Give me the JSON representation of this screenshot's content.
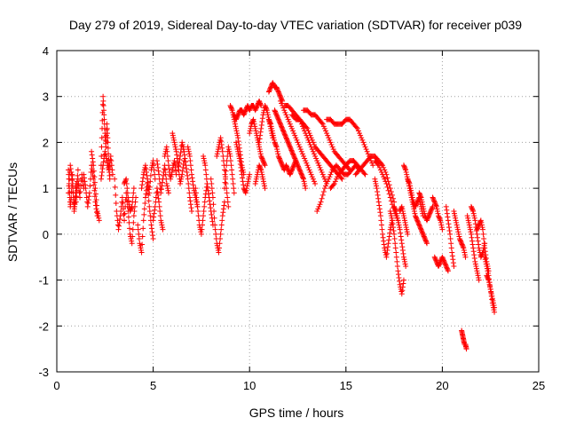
{
  "chart_data": {
    "type": "scatter",
    "title": "Day 279 of 2019, Sidereal Day-to-day VTEC variation (SDTVAR) for receiver p039",
    "xlabel": "GPS time / hours",
    "ylabel": "SDTVAR / TECUs",
    "xlim": [
      0,
      25
    ],
    "ylim": [
      -3,
      4
    ],
    "xticks": [
      0,
      5,
      10,
      15,
      20,
      25
    ],
    "yticks": [
      -3,
      -2,
      -1,
      0,
      1,
      2,
      3,
      4
    ],
    "grid": true,
    "marker": "+",
    "color": "#ff0000",
    "segments": [
      {
        "x": [
          0.6,
          0.65,
          0.7,
          0.75,
          0.8,
          0.85,
          0.9,
          0.95,
          1.0
        ],
        "y": [
          1.4,
          1.0,
          0.6,
          0.8,
          1.3,
          0.9,
          0.5,
          0.7,
          1.1
        ]
      },
      {
        "x": [
          0.6,
          0.7,
          0.8,
          0.9,
          1.0,
          1.1
        ],
        "y": [
          0.9,
          1.5,
          1.2,
          0.6,
          0.9,
          1.4
        ]
      },
      {
        "x": [
          1.0,
          1.1,
          1.2,
          1.3,
          1.4
        ],
        "y": [
          0.7,
          1.2,
          0.8,
          1.3,
          1.0
        ]
      },
      {
        "x": [
          1.4,
          1.5,
          1.6,
          1.7,
          1.8,
          1.9,
          2.0,
          2.1
        ],
        "y": [
          1.3,
          1.0,
          0.6,
          0.9,
          1.5,
          1.2,
          0.7,
          0.4
        ]
      },
      {
        "x": [
          1.8,
          1.9,
          2.0,
          2.1,
          2.2
        ],
        "y": [
          1.8,
          1.5,
          1.0,
          0.5,
          0.3
        ]
      },
      {
        "x": [
          2.3,
          2.35,
          2.4,
          2.45,
          2.5,
          2.55,
          2.6,
          2.65,
          2.7,
          2.75
        ],
        "y": [
          1.5,
          2.3,
          3.0,
          2.6,
          2.2,
          1.9,
          2.4,
          2.0,
          1.5,
          1.2
        ]
      },
      {
        "x": [
          2.3,
          2.4,
          2.5,
          2.6,
          2.7,
          2.8,
          2.9
        ],
        "y": [
          1.2,
          1.5,
          1.8,
          1.6,
          1.4,
          1.7,
          1.3
        ]
      },
      {
        "x": [
          3.0,
          3.1,
          3.2,
          3.3,
          3.4,
          3.5
        ],
        "y": [
          1.2,
          0.5,
          0.1,
          0.4,
          0.8,
          0.3
        ]
      },
      {
        "x": [
          3.5,
          3.6,
          3.7,
          3.8,
          3.9,
          4.0,
          4.1
        ],
        "y": [
          0.3,
          0.9,
          0.5,
          0.0,
          -0.2,
          0.4,
          0.8
        ]
      },
      {
        "x": [
          3.5,
          3.6,
          3.7,
          3.8,
          3.9,
          4.0
        ],
        "y": [
          1.1,
          1.2,
          0.8,
          0.5,
          0.6,
          1.0
        ]
      },
      {
        "x": [
          4.2,
          4.3,
          4.4,
          4.5,
          4.6,
          4.7,
          4.8,
          4.9,
          5.0
        ],
        "y": [
          0.2,
          -0.2,
          -0.4,
          0.3,
          0.8,
          1.1,
          0.6,
          0.2,
          -0.1
        ]
      },
      {
        "x": [
          4.4,
          4.5,
          4.6,
          4.7,
          4.8,
          4.9,
          5.0,
          5.1
        ],
        "y": [
          1.0,
          1.3,
          1.5,
          1.2,
          0.9,
          1.4,
          1.6,
          1.2
        ]
      },
      {
        "x": [
          5.0,
          5.1,
          5.2,
          5.3,
          5.4,
          5.5
        ],
        "y": [
          0.3,
          0.6,
          1.0,
          0.7,
          0.3,
          0.1
        ]
      },
      {
        "x": [
          5.2,
          5.3,
          5.4,
          5.5,
          5.6,
          5.7,
          5.8
        ],
        "y": [
          1.6,
          1.3,
          0.9,
          1.2,
          1.5,
          1.1,
          0.9
        ]
      },
      {
        "x": [
          5.6,
          5.7,
          5.8,
          5.9,
          6.0,
          6.1,
          6.2
        ],
        "y": [
          1.7,
          1.9,
          1.5,
          1.2,
          1.4,
          1.6,
          1.3
        ]
      },
      {
        "x": [
          6.0,
          6.1,
          6.2,
          6.3,
          6.4,
          6.5,
          6.6
        ],
        "y": [
          2.2,
          2.0,
          1.8,
          1.5,
          1.1,
          1.3,
          1.6
        ]
      },
      {
        "x": [
          6.3,
          6.4,
          6.5,
          6.6,
          6.7,
          6.8,
          6.9,
          7.0
        ],
        "y": [
          1.4,
          1.7,
          2.0,
          1.8,
          1.5,
          1.2,
          0.8,
          0.5
        ]
      },
      {
        "x": [
          6.8,
          6.9,
          7.0,
          7.1,
          7.2,
          7.3
        ],
        "y": [
          1.9,
          1.7,
          1.3,
          1.0,
          0.8,
          0.6
        ]
      },
      {
        "x": [
          7.2,
          7.3,
          7.4,
          7.5,
          7.6,
          7.7,
          7.8
        ],
        "y": [
          1.0,
          0.6,
          0.2,
          0.0,
          0.4,
          0.8,
          1.1
        ]
      },
      {
        "x": [
          7.6,
          7.7,
          7.8,
          7.9,
          8.0,
          8.1
        ],
        "y": [
          1.7,
          1.5,
          1.1,
          0.8,
          0.5,
          0.2
        ]
      },
      {
        "x": [
          8.0,
          8.1,
          8.2,
          8.3,
          8.4,
          8.5,
          8.6,
          8.7
        ],
        "y": [
          1.2,
          0.8,
          0.2,
          -0.2,
          -0.4,
          0.0,
          0.4,
          0.7
        ]
      },
      {
        "x": [
          8.3,
          8.4,
          8.5,
          8.6,
          8.7,
          8.8,
          8.9
        ],
        "y": [
          1.7,
          1.9,
          2.1,
          1.8,
          1.4,
          1.0,
          0.6
        ]
      },
      {
        "x": [
          8.7,
          8.8,
          8.9,
          9.0,
          9.1,
          9.2
        ],
        "y": [
          1.0,
          1.5,
          1.9,
          1.7,
          1.3,
          0.9
        ]
      },
      {
        "x": [
          9.0,
          9.1,
          9.2,
          9.3,
          9.4,
          9.5,
          9.6,
          9.7
        ],
        "y": [
          2.8,
          2.7,
          2.5,
          2.3,
          2.1,
          1.8,
          1.5,
          1.3
        ]
      },
      {
        "x": [
          9.2,
          9.3,
          9.4,
          9.5,
          9.6,
          9.7,
          9.8,
          9.9,
          10.0,
          10.1,
          10.2,
          10.3,
          10.4,
          10.5,
          10.6
        ],
        "y": [
          2.6,
          2.5,
          2.6,
          2.7,
          2.7,
          2.6,
          2.7,
          2.8,
          2.7,
          2.8,
          2.8,
          2.7,
          2.8,
          2.9,
          2.8
        ]
      },
      {
        "x": [
          9.3,
          9.4,
          9.5,
          9.6,
          9.7,
          9.8,
          9.9,
          10.0
        ],
        "y": [
          2.0,
          1.8,
          1.6,
          1.3,
          1.0,
          0.9,
          1.1,
          1.3
        ]
      },
      {
        "x": [
          10.0,
          10.1,
          10.2,
          10.3,
          10.4,
          10.5,
          10.6,
          10.7,
          10.8
        ],
        "y": [
          2.2,
          2.4,
          2.5,
          2.3,
          2.1,
          1.9,
          1.7,
          1.6,
          1.5
        ]
      },
      {
        "x": [
          10.5,
          10.6,
          10.7,
          10.8,
          10.9,
          11.0,
          11.1,
          11.2
        ],
        "y": [
          2.0,
          2.3,
          2.6,
          2.8,
          2.7,
          2.5,
          2.3,
          2.1
        ]
      },
      {
        "x": [
          10.3,
          10.4,
          10.5,
          10.6,
          10.7,
          10.8
        ],
        "y": [
          1.1,
          1.3,
          1.5,
          1.4,
          1.2,
          1.0
        ]
      },
      {
        "x": [
          11.0,
          11.1,
          11.2,
          11.3,
          11.4,
          11.5,
          11.6,
          11.7
        ],
        "y": [
          3.1,
          3.2,
          3.3,
          3.2,
          3.2,
          3.1,
          3.0,
          2.9
        ]
      },
      {
        "x": [
          11.0,
          11.1,
          11.2,
          11.3,
          11.4,
          11.5,
          11.6,
          11.7,
          11.8,
          11.9,
          12.0,
          12.1,
          12.2,
          12.3,
          12.4
        ],
        "y": [
          2.5,
          2.4,
          2.2,
          2.0,
          1.9,
          1.7,
          1.6,
          1.5,
          1.4,
          1.5,
          1.4,
          1.3,
          1.4,
          1.5,
          1.6
        ]
      },
      {
        "x": [
          11.3,
          11.4,
          11.5,
          11.6,
          11.7,
          11.8,
          11.9,
          12.0,
          12.1,
          12.2,
          12.3,
          12.4,
          12.5,
          12.6,
          12.7,
          12.8,
          12.9
        ],
        "y": [
          2.7,
          2.6,
          2.5,
          2.4,
          2.3,
          2.2,
          2.1,
          2.0,
          1.9,
          1.8,
          1.7,
          1.6,
          1.5,
          1.4,
          1.3,
          1.2,
          1.0
        ]
      },
      {
        "x": [
          11.6,
          11.8,
          12.0,
          12.2,
          12.4,
          12.6,
          12.8,
          13.0,
          13.2,
          13.4
        ],
        "y": [
          2.9,
          2.7,
          2.5,
          2.3,
          2.1,
          1.9,
          1.7,
          1.5,
          1.3,
          1.1
        ]
      },
      {
        "x": [
          11.8,
          12.0,
          12.2,
          12.4,
          12.6,
          12.8,
          13.0,
          13.2,
          13.4,
          13.6,
          13.8,
          14.0
        ],
        "y": [
          2.8,
          2.8,
          2.7,
          2.6,
          2.5,
          2.3,
          2.1,
          1.9,
          1.7,
          1.5,
          1.3,
          1.1
        ]
      },
      {
        "x": [
          12.2,
          12.4,
          12.6,
          12.8,
          13.0,
          13.2,
          13.4,
          13.6,
          13.8,
          14.0,
          14.2,
          14.4,
          14.6,
          14.8
        ],
        "y": [
          2.6,
          2.5,
          2.5,
          2.4,
          2.3,
          2.1,
          1.9,
          1.8,
          1.7,
          1.6,
          1.5,
          1.4,
          1.3,
          1.2
        ]
      },
      {
        "x": [
          12.8,
          13.0,
          13.2,
          13.4,
          13.6,
          13.8,
          14.0,
          14.2,
          14.4,
          14.6,
          14.8,
          15.0,
          15.2
        ],
        "y": [
          2.7,
          2.7,
          2.6,
          2.6,
          2.5,
          2.4,
          2.2,
          2.0,
          1.8,
          1.7,
          1.6,
          1.5,
          1.4
        ]
      },
      {
        "x": [
          13.5,
          13.7,
          13.9,
          14.1,
          14.3,
          14.5,
          14.7,
          14.9,
          15.1,
          15.3,
          15.5,
          15.7
        ],
        "y": [
          0.5,
          0.7,
          1.0,
          1.2,
          1.4,
          1.5,
          1.4,
          1.3,
          1.3,
          1.4,
          1.5,
          1.4
        ]
      },
      {
        "x": [
          14.2,
          14.4,
          14.6,
          14.8,
          15.0,
          15.2,
          15.4,
          15.6,
          15.8,
          16.0
        ],
        "y": [
          1.0,
          1.1,
          1.3,
          1.4,
          1.5,
          1.6,
          1.6,
          1.5,
          1.4,
          1.3
        ]
      },
      {
        "x": [
          14.0,
          14.2,
          14.4,
          14.6,
          14.8,
          15.0,
          15.2,
          15.4,
          15.6,
          15.8,
          16.0,
          16.2,
          16.4
        ],
        "y": [
          2.5,
          2.5,
          2.4,
          2.4,
          2.4,
          2.5,
          2.5,
          2.4,
          2.3,
          2.1,
          1.9,
          1.7,
          1.5
        ]
      },
      {
        "x": [
          15.5,
          15.7,
          15.9,
          16.1,
          16.3,
          16.5,
          16.7,
          16.9,
          17.1,
          17.3,
          17.5
        ],
        "y": [
          1.3,
          1.4,
          1.5,
          1.6,
          1.7,
          1.7,
          1.6,
          1.5,
          1.3,
          1.0,
          0.7
        ]
      },
      {
        "x": [
          16.5,
          16.7,
          16.9,
          17.1,
          17.3,
          17.5,
          17.7
        ],
        "y": [
          1.6,
          1.5,
          1.3,
          1.1,
          0.8,
          0.5,
          0.3
        ]
      },
      {
        "x": [
          16.5,
          16.6,
          16.7,
          16.8,
          16.9,
          17.0,
          17.1,
          17.2,
          17.3,
          17.4
        ],
        "y": [
          1.2,
          1.0,
          0.7,
          0.4,
          0.0,
          -0.3,
          -0.5,
          -0.2,
          0.1,
          0.3
        ]
      },
      {
        "x": [
          17.3,
          17.4,
          17.5,
          17.6,
          17.7,
          17.8,
          17.9,
          18.0
        ],
        "y": [
          0.5,
          0.3,
          0.0,
          -0.4,
          -0.8,
          -1.1,
          -1.3,
          -1.0
        ]
      },
      {
        "x": [
          17.5,
          17.6,
          17.7,
          17.8,
          17.9,
          18.0,
          18.1
        ],
        "y": [
          0.6,
          0.5,
          0.3,
          0.1,
          -0.2,
          -0.5,
          -0.7
        ]
      },
      {
        "x": [
          17.8,
          17.9,
          18.0,
          18.1,
          18.2
        ],
        "y": [
          0.5,
          0.6,
          0.4,
          0.2,
          0.0
        ]
      },
      {
        "x": [
          18.0,
          18.1,
          18.2,
          18.3,
          18.4,
          18.5,
          18.6,
          18.7,
          18.8,
          18.9,
          19.0,
          19.1,
          19.2
        ],
        "y": [
          1.5,
          1.4,
          1.2,
          1.0,
          0.8,
          0.6,
          0.4,
          0.3,
          0.2,
          0.1,
          0.0,
          -0.1,
          -0.2
        ]
      },
      {
        "x": [
          18.2,
          18.3,
          18.4,
          18.5,
          18.6,
          18.7,
          18.8,
          18.9,
          19.0
        ],
        "y": [
          1.2,
          1.1,
          0.9,
          0.7,
          0.6,
          0.7,
          0.8,
          0.6,
          0.4
        ]
      },
      {
        "x": [
          18.8,
          18.9,
          19.0,
          19.1,
          19.2,
          19.3,
          19.4,
          19.5
        ],
        "y": [
          0.9,
          0.8,
          0.6,
          0.4,
          0.3,
          0.4,
          0.5,
          0.6
        ]
      },
      {
        "x": [
          19.5,
          19.6,
          19.7,
          19.8,
          19.9,
          20.0
        ],
        "y": [
          0.8,
          0.7,
          0.6,
          0.4,
          0.3,
          0.1
        ]
      },
      {
        "x": [
          19.6,
          19.7,
          19.8,
          19.9,
          20.0,
          20.1,
          20.2,
          20.3
        ],
        "y": [
          -0.5,
          -0.6,
          -0.7,
          -0.6,
          -0.5,
          -0.6,
          -0.7,
          -0.8
        ]
      },
      {
        "x": [
          20.2,
          20.3,
          20.4,
          20.5,
          20.6
        ],
        "y": [
          0.6,
          0.3,
          0.0,
          -0.4,
          -0.7
        ]
      },
      {
        "x": [
          20.6,
          20.7,
          20.8,
          20.9,
          21.0,
          21.1,
          21.2
        ],
        "y": [
          0.5,
          0.3,
          0.1,
          -0.1,
          -0.2,
          -0.3,
          -0.5
        ]
      },
      {
        "x": [
          21.0,
          21.05,
          21.1,
          21.15,
          21.2,
          21.25
        ],
        "y": [
          -2.1,
          -2.2,
          -2.3,
          -2.4,
          -2.4,
          -2.5
        ]
      },
      {
        "x": [
          21.3,
          21.4,
          21.5,
          21.6,
          21.7,
          21.8,
          21.9
        ],
        "y": [
          0.4,
          0.2,
          0.0,
          -0.3,
          -0.6,
          -0.8,
          -1.0
        ]
      },
      {
        "x": [
          21.5,
          21.6,
          21.7,
          21.8,
          21.9,
          22.0,
          22.1,
          22.2
        ],
        "y": [
          0.6,
          0.5,
          0.3,
          0.0,
          -0.3,
          -0.5,
          -0.4,
          -0.2
        ]
      },
      {
        "x": [
          21.8,
          21.9,
          22.0,
          22.1,
          22.2,
          22.3,
          22.4
        ],
        "y": [
          0.1,
          0.2,
          0.3,
          0.1,
          -0.3,
          -0.6,
          -0.8
        ]
      },
      {
        "x": [
          22.2,
          22.3,
          22.4,
          22.5,
          22.6,
          22.7
        ],
        "y": [
          -0.5,
          -0.7,
          -0.9,
          -1.2,
          -1.5,
          -1.7
        ]
      },
      {
        "x": [
          22.3,
          22.4,
          22.5,
          22.6,
          22.7
        ],
        "y": [
          -0.9,
          -1.0,
          -1.2,
          -1.4,
          -1.6
        ]
      }
    ]
  }
}
